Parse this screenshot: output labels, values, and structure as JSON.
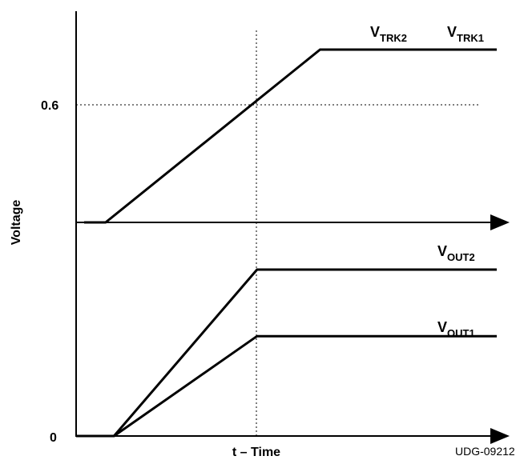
{
  "chart_data": {
    "type": "line",
    "xlabel": "t – Time",
    "ylabel": "Voltage",
    "y_tick_labels": [
      "0.6",
      "0"
    ],
    "grid": false,
    "series": [
      {
        "name_main": "V",
        "name_sub": "TRK2",
        "points": [
          [
            0,
            0
          ],
          [
            0.07,
            0
          ],
          [
            0.58,
            1.0
          ],
          [
            1.0,
            1.0
          ]
        ]
      },
      {
        "name_main": "V",
        "name_sub": "TRK1",
        "points": [
          [
            0,
            0
          ],
          [
            0.07,
            0
          ],
          [
            0.58,
            1.0
          ],
          [
            1.0,
            1.0
          ]
        ]
      },
      {
        "name_main": "V",
        "name_sub": "OUT2",
        "points": [
          [
            0,
            0
          ],
          [
            0.09,
            0
          ],
          [
            0.43,
            1.0
          ],
          [
            1.0,
            1.0
          ]
        ]
      },
      {
        "name_main": "V",
        "name_sub": "OUT1",
        "points": [
          [
            0,
            0
          ],
          [
            0.09,
            0
          ],
          [
            0.43,
            0.6
          ],
          [
            1.0,
            0.6
          ]
        ]
      }
    ],
    "reference_lines": {
      "vertical_at_fraction": 0.43,
      "horizontal_value": "0.6"
    },
    "figure_code": "UDG-09212"
  }
}
